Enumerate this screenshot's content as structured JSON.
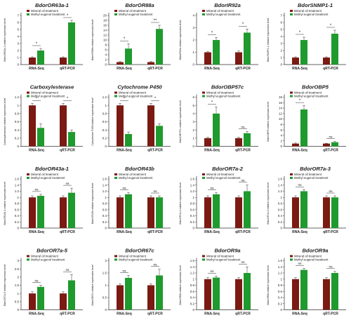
{
  "colors": {
    "mineral": "#7a1a12",
    "methyl": "#1f9a2e",
    "axis": "#333333",
    "text": "#222222"
  },
  "legend": {
    "mineral": "Mineral oil treatment",
    "methyl": "Methyl eugenol treatment"
  },
  "chart_data": [
    {
      "type": "bar",
      "title": "BdorOR63a-1",
      "ylabel": "BdorOR63a-1 relative expression level",
      "ylim": [
        0,
        7
      ],
      "yticks": [
        0,
        1,
        2,
        3,
        4,
        5,
        6,
        7
      ],
      "categories": [
        "RNA-Seq",
        "qRT-PCR"
      ],
      "series": [
        {
          "name": "Mineral oil treatment",
          "values": [
            1,
            1
          ]
        },
        {
          "name": "Methyl eugenol treatment",
          "values": [
            2.0,
            6.0
          ]
        }
      ],
      "errors": [
        [
          0.1,
          0.1
        ],
        [
          0.3,
          0.3
        ]
      ],
      "signif": [
        "*",
        "*"
      ]
    },
    {
      "type": "bar",
      "title": "BdorOR88a",
      "ylabel": "BdorOR88a relative expression level",
      "ylim": [
        0,
        20
      ],
      "yticks": [
        0,
        2,
        4,
        6,
        8,
        10,
        12,
        14,
        16,
        18,
        20
      ],
      "categories": [
        "RNA-Seq",
        "qRT-PCR"
      ],
      "series": [
        {
          "name": "Mineral oil treatment",
          "values": [
            1,
            1
          ]
        },
        {
          "name": "Methyl eugenol treatment",
          "values": [
            6.5,
            14.5
          ]
        }
      ],
      "errors": [
        [
          0.2,
          0.2
        ],
        [
          2.0,
          1.5
        ]
      ],
      "signif": [
        "*",
        "**"
      ]
    },
    {
      "type": "bar",
      "title": "BdorIR92a",
      "ylabel": "BdorIR92a relative expression level",
      "ylim": [
        0,
        4
      ],
      "yticks": [
        0,
        1,
        2,
        3,
        4
      ],
      "categories": [
        "RNA-Seq",
        "qRT-PCR"
      ],
      "series": [
        {
          "name": "Mineral oil treatment",
          "values": [
            1,
            1
          ]
        },
        {
          "name": "Methyl eugenol treatment",
          "values": [
            2.0,
            2.6
          ]
        }
      ],
      "errors": [
        [
          0.05,
          0.1
        ],
        [
          0.2,
          0.3
        ]
      ],
      "signif": [
        "*",
        "*"
      ]
    },
    {
      "type": "bar",
      "title": "BdorSNMP1-1",
      "ylabel": "BdorSNMP1-1 relative expression level",
      "ylim": [
        0,
        7
      ],
      "yticks": [
        0,
        1,
        2,
        3,
        4,
        5,
        6,
        7
      ],
      "categories": [
        "RNA-Seq",
        "qRT-PCR"
      ],
      "series": [
        {
          "name": "Mineral oil treatment",
          "values": [
            1,
            1
          ]
        },
        {
          "name": "Methyl eugenol treatment",
          "values": [
            3.5,
            4.4
          ]
        }
      ],
      "errors": [
        [
          0.1,
          0.1
        ],
        [
          0.4,
          0.5
        ]
      ],
      "signif": [
        "*",
        "*"
      ]
    },
    {
      "type": "bar",
      "title": "Carboxylesterase",
      "ylabel": "Carboxylesterase relative expression level",
      "ylim": [
        0,
        1.2
      ],
      "yticks": [
        0,
        0.2,
        0.4,
        0.6,
        0.8,
        1.0,
        1.2
      ],
      "categories": [
        "RNA-Seq",
        "qRT-PCR"
      ],
      "series": [
        {
          "name": "Mineral oil treatment",
          "values": [
            1,
            1
          ]
        },
        {
          "name": "Methyl eugenol treatment",
          "values": [
            0.45,
            0.35
          ]
        }
      ],
      "errors": [
        [
          0.05,
          0.05
        ],
        [
          0.1,
          0.05
        ]
      ],
      "signif": [
        "*",
        "*"
      ]
    },
    {
      "type": "bar",
      "title": "Cytochrome P450",
      "ylabel": "Cytochrome P450 relative expression level",
      "ylim": [
        0,
        1.2
      ],
      "yticks": [
        0,
        0.2,
        0.4,
        0.6,
        0.8,
        1.0,
        1.2
      ],
      "categories": [
        "RNA-Seq",
        "qRT-PCR"
      ],
      "series": [
        {
          "name": "Mineral oil treatment",
          "values": [
            1,
            1
          ]
        },
        {
          "name": "Methyl eugenol treatment",
          "values": [
            0.3,
            0.5
          ]
        }
      ],
      "errors": [
        [
          0.05,
          0.05
        ],
        [
          0.05,
          0.05
        ]
      ],
      "signif": [
        "*",
        "*"
      ]
    },
    {
      "type": "bar",
      "title": "BdorOBP57c",
      "ylabel": "BdorOBP57c relative expression level",
      "ylim": [
        0,
        6
      ],
      "yticks": [
        0,
        1,
        2,
        3,
        4,
        5,
        6
      ],
      "categories": [
        "RNA-Seq",
        "qRT-PCR"
      ],
      "series": [
        {
          "name": "Mineral oil treatment",
          "values": [
            1,
            1
          ]
        },
        {
          "name": "Methyl eugenol treatment",
          "values": [
            4.0,
            1.6
          ]
        }
      ],
      "errors": [
        [
          0.1,
          0.1
        ],
        [
          0.8,
          0.2
        ]
      ],
      "signif": [
        "*",
        "ns"
      ]
    },
    {
      "type": "bar",
      "title": "BdorOBP5",
      "ylabel": "BdorOBP5 relative expression level",
      "ylim": [
        0,
        18
      ],
      "yticks": [
        0,
        2,
        4,
        6,
        8,
        10,
        12,
        14,
        16,
        18
      ],
      "categories": [
        "RNA-Seq",
        "qRT-PCR"
      ],
      "series": [
        {
          "name": "Mineral oil treatment",
          "values": [
            1,
            1
          ]
        },
        {
          "name": "Methyl eugenol treatment",
          "values": [
            13.5,
            1.5
          ]
        }
      ],
      "errors": [
        [
          0.2,
          0.1
        ],
        [
          1.5,
          0.3
        ]
      ],
      "signif": [
        "*",
        "ns"
      ]
    },
    {
      "type": "bar",
      "title": "BdorOR43a-1",
      "ylabel": "BdorOR43a-1 relative expression level",
      "ylim": [
        0,
        1.6
      ],
      "yticks": [
        0,
        0.2,
        0.4,
        0.6,
        0.8,
        1.0,
        1.2,
        1.4,
        1.6
      ],
      "categories": [
        "RNA-Seq",
        "qRT-PCR"
      ],
      "series": [
        {
          "name": "Mineral oil treatment",
          "values": [
            1,
            1
          ]
        },
        {
          "name": "Methyl eugenol treatment",
          "values": [
            1.05,
            1.15
          ]
        }
      ],
      "errors": [
        [
          0.05,
          0.05
        ],
        [
          0.05,
          0.15
        ]
      ],
      "signif": [
        "ns",
        "ns"
      ]
    },
    {
      "type": "bar",
      "title": "BdorOR43b",
      "ylabel": "BdorOR43b relative expression level",
      "ylim": [
        0,
        1.6
      ],
      "yticks": [
        0,
        0.2,
        0.4,
        0.6,
        0.8,
        1.0,
        1.2,
        1.4,
        1.6
      ],
      "categories": [
        "RNA-Seq",
        "qRT-PCR"
      ],
      "series": [
        {
          "name": "Mineral oil treatment",
          "values": [
            1,
            1
          ]
        },
        {
          "name": "Methyl eugenol treatment",
          "values": [
            1.1,
            1.0
          ]
        }
      ],
      "errors": [
        [
          0.05,
          0.05
        ],
        [
          0.05,
          0.05
        ]
      ],
      "signif": [
        "ns",
        "ns"
      ]
    },
    {
      "type": "bar",
      "title": "BdorOR7a-2",
      "ylabel": "BdorOR7a-2 relative expression level",
      "ylim": [
        0,
        1.6
      ],
      "yticks": [
        0,
        0.2,
        0.4,
        0.6,
        0.8,
        1.0,
        1.2,
        1.4,
        1.6
      ],
      "categories": [
        "RNA-Seq",
        "qRT-PCR"
      ],
      "series": [
        {
          "name": "Mineral oil treatment",
          "values": [
            1,
            1
          ]
        },
        {
          "name": "Methyl eugenol treatment",
          "values": [
            1.1,
            1.2
          ]
        }
      ],
      "errors": [
        [
          0.05,
          0.05
        ],
        [
          0.05,
          0.2
        ]
      ],
      "signif": [
        "ns",
        "ns"
      ]
    },
    {
      "type": "bar",
      "title": "BdorOR7a-3",
      "ylabel": "BdorOR7a-3 relative expression level",
      "ylim": [
        0,
        1.6
      ],
      "yticks": [
        0,
        0.2,
        0.4,
        0.6,
        0.8,
        1.0,
        1.2,
        1.4,
        1.6
      ],
      "categories": [
        "RNA-Seq",
        "qRT-PCR"
      ],
      "series": [
        {
          "name": "Mineral oil treatment",
          "values": [
            1,
            1
          ]
        },
        {
          "name": "Methyl eugenol treatment",
          "values": [
            1.2,
            1.0
          ]
        }
      ],
      "errors": [
        [
          0.05,
          0.05
        ],
        [
          0.05,
          0.05
        ]
      ],
      "signif": [
        "ns",
        "ns"
      ]
    },
    {
      "type": "bar",
      "title": "BdorOR7a-5",
      "ylabel": "BdorOR7a-5 relative expression level",
      "ylim": [
        0,
        3
      ],
      "yticks": [
        0,
        0.5,
        1.0,
        1.5,
        2.0,
        2.5,
        3.0
      ],
      "categories": [
        "RNA-Seq",
        "qRT-PCR"
      ],
      "series": [
        {
          "name": "Mineral oil treatment",
          "values": [
            1,
            1
          ]
        },
        {
          "name": "Methyl eugenol treatment",
          "values": [
            1.4,
            1.8
          ]
        }
      ],
      "errors": [
        [
          0.1,
          0.1
        ],
        [
          0.1,
          0.35
        ]
      ],
      "signif": [
        "ns",
        "ns"
      ]
    },
    {
      "type": "bar",
      "title": "BdorOR67c",
      "ylabel": "BdorOR67c relative expression level",
      "ylim": [
        0,
        2
      ],
      "yticks": [
        0,
        0.5,
        1.0,
        1.5,
        2.0
      ],
      "categories": [
        "RNA-Seq",
        "qRT-PCR"
      ],
      "series": [
        {
          "name": "Mineral oil treatment",
          "values": [
            1,
            1
          ]
        },
        {
          "name": "Methyl eugenol treatment",
          "values": [
            1.3,
            1.4
          ]
        }
      ],
      "errors": [
        [
          0.05,
          0.05
        ],
        [
          0.1,
          0.25
        ]
      ],
      "signif": [
        "ns",
        "ns"
      ]
    },
    {
      "type": "bar",
      "title": "BdorOR9a",
      "ylabel": "BdorOR9a relative expression level",
      "ylim": [
        0,
        1.6
      ],
      "yticks": [
        0,
        0.2,
        0.4,
        0.6,
        0.8,
        1.0,
        1.2,
        1.4,
        1.6
      ],
      "categories": [
        "RNA-Seq",
        "qRT-PCR"
      ],
      "series": [
        {
          "name": "Mineral oil treatment",
          "values": [
            1,
            1
          ]
        },
        {
          "name": "Methyl eugenol treatment",
          "values": [
            1.05,
            1.2
          ]
        }
      ],
      "errors": [
        [
          0.05,
          0.05
        ],
        [
          0.05,
          0.2
        ]
      ],
      "signif": [
        "ns",
        "ns"
      ]
    },
    {
      "type": "bar",
      "title": "BdorOR9a",
      "ylabel": "BdorOR9a relative expression level",
      "ylim": [
        0,
        1.6
      ],
      "yticks": [
        0,
        0.2,
        0.4,
        0.6,
        0.8,
        1.0,
        1.2,
        1.4,
        1.6
      ],
      "categories": [
        "RNA-Seq",
        "qRT-PCR"
      ],
      "series": [
        {
          "name": "Mineral oil treatment",
          "values": [
            1,
            1
          ]
        },
        {
          "name": "Methyl eugenol treatment",
          "values": [
            1.3,
            1.2
          ]
        }
      ],
      "errors": [
        [
          0.05,
          0.05
        ],
        [
          0.05,
          0.05
        ]
      ],
      "signif": [
        "ns",
        "ns"
      ]
    }
  ]
}
